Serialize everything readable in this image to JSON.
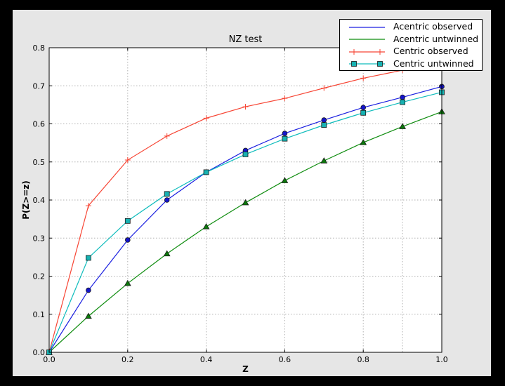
{
  "colors": {
    "canvas_border": "#000000",
    "figure_bg": "#e6e6e6",
    "plot_bg": "#ffffff",
    "grid": "#b0b0b0",
    "spine": "#000000",
    "text": "#000000",
    "marker_edge": "#1a1a1a"
  },
  "chart_data": {
    "type": "line",
    "title": "NZ test",
    "xlabel": "Z",
    "ylabel": "P(Z>=z)",
    "xlim": [
      0.0,
      1.0
    ],
    "ylim": [
      0.0,
      0.8
    ],
    "xtick_labels": [
      "0.0",
      "0.2",
      "0.4",
      "0.6",
      "0.8",
      "1.0"
    ],
    "ytick_labels": [
      "0.0",
      "0.1",
      "0.2",
      "0.3",
      "0.4",
      "0.5",
      "0.6",
      "0.7",
      "0.8"
    ],
    "x_gridlines": [
      0.2,
      0.4,
      0.6,
      0.8,
      0.9
    ],
    "y_gridlines": [
      0.1,
      0.2,
      0.3,
      0.4,
      0.5,
      0.6,
      0.7
    ],
    "grid": true,
    "legend_position": "upper right",
    "x": [
      0.0,
      0.1,
      0.2,
      0.3,
      0.4,
      0.5,
      0.6,
      0.7,
      0.8,
      0.9,
      1.0
    ],
    "series": [
      {
        "name": "Acentric observed",
        "color": "#1a1fe0",
        "marker_fill": "#1414cc",
        "marker": "circle",
        "values": [
          0.0,
          0.163,
          0.295,
          0.4,
          0.473,
          0.53,
          0.575,
          0.61,
          0.643,
          0.67,
          0.698
        ]
      },
      {
        "name": "Acentric untwinned",
        "color": "#0e8c0e",
        "marker_fill": "#0a7a0a",
        "marker": "triangle",
        "values": [
          0.0,
          0.095,
          0.181,
          0.259,
          0.33,
          0.393,
          0.451,
          0.503,
          0.551,
          0.593,
          0.632
        ]
      },
      {
        "name": "Centric observed",
        "color": "#f74534",
        "marker_fill": "#f74534",
        "marker": "plus",
        "values": [
          0.0,
          0.385,
          0.505,
          0.568,
          0.615,
          0.645,
          0.667,
          0.694,
          0.72,
          0.741,
          0.757
        ]
      },
      {
        "name": "Centric untwinned",
        "color": "#0ebcbc",
        "marker_fill": "#17b2b2",
        "marker": "square",
        "values": [
          0.0,
          0.248,
          0.345,
          0.416,
          0.473,
          0.52,
          0.561,
          0.597,
          0.629,
          0.657,
          0.683
        ]
      }
    ]
  }
}
